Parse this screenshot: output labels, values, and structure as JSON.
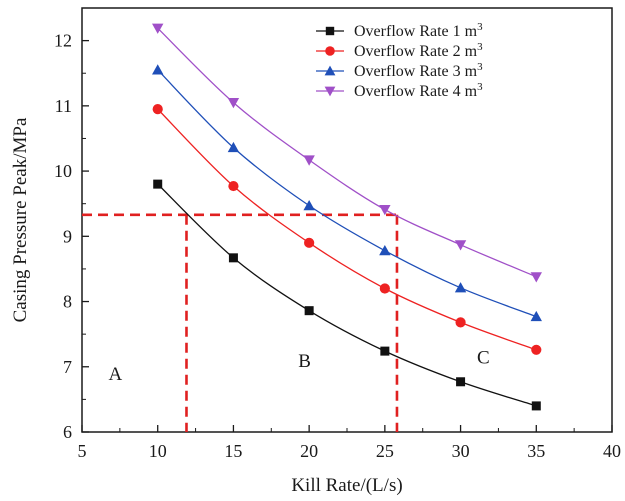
{
  "chart_data": {
    "type": "line",
    "xlabel": "Kill Rate/(L/s)",
    "ylabel": "Casing Pressure Peak/MPa",
    "xlim": [
      5,
      40
    ],
    "ylim": [
      6,
      12.5
    ],
    "xticks": [
      5,
      10,
      15,
      20,
      25,
      30,
      35,
      40
    ],
    "yticks": [
      6,
      7,
      8,
      9,
      10,
      11,
      12
    ],
    "x": [
      10,
      15,
      20,
      25,
      30,
      35
    ],
    "grid": false,
    "legend_position": "top-right",
    "series": [
      {
        "name": "Overflow Rate 1 m",
        "sup": "3",
        "marker": "square",
        "color": "#111111",
        "values": [
          9.8,
          8.67,
          7.86,
          7.24,
          6.77,
          6.4
        ]
      },
      {
        "name": "Overflow Rate 2 m",
        "sup": "3",
        "marker": "circle",
        "color": "#ee2222",
        "values": [
          10.95,
          9.77,
          8.9,
          8.2,
          7.68,
          7.26
        ]
      },
      {
        "name": "Overflow Rate 3 m",
        "sup": "3",
        "marker": "triangle-up",
        "color": "#1f4fb8",
        "values": [
          11.55,
          10.36,
          9.47,
          8.78,
          8.21,
          7.77
        ]
      },
      {
        "name": "Overflow Rate 4 m",
        "sup": "3",
        "marker": "triangle-down",
        "color": "#a050c8",
        "values": [
          12.19,
          11.05,
          10.17,
          9.41,
          8.87,
          8.38
        ]
      }
    ],
    "reference_lines": {
      "color": "#e02020",
      "horizontal_y": 9.33,
      "horizontal_x_range": [
        5,
        25.8
      ],
      "vertical_x": [
        11.9,
        25.8
      ]
    },
    "region_labels": [
      {
        "text": "A",
        "x": 7.2,
        "y": 6.8
      },
      {
        "text": "B",
        "x": 19.7,
        "y": 7.0
      },
      {
        "text": "C",
        "x": 31.5,
        "y": 7.05
      }
    ]
  }
}
